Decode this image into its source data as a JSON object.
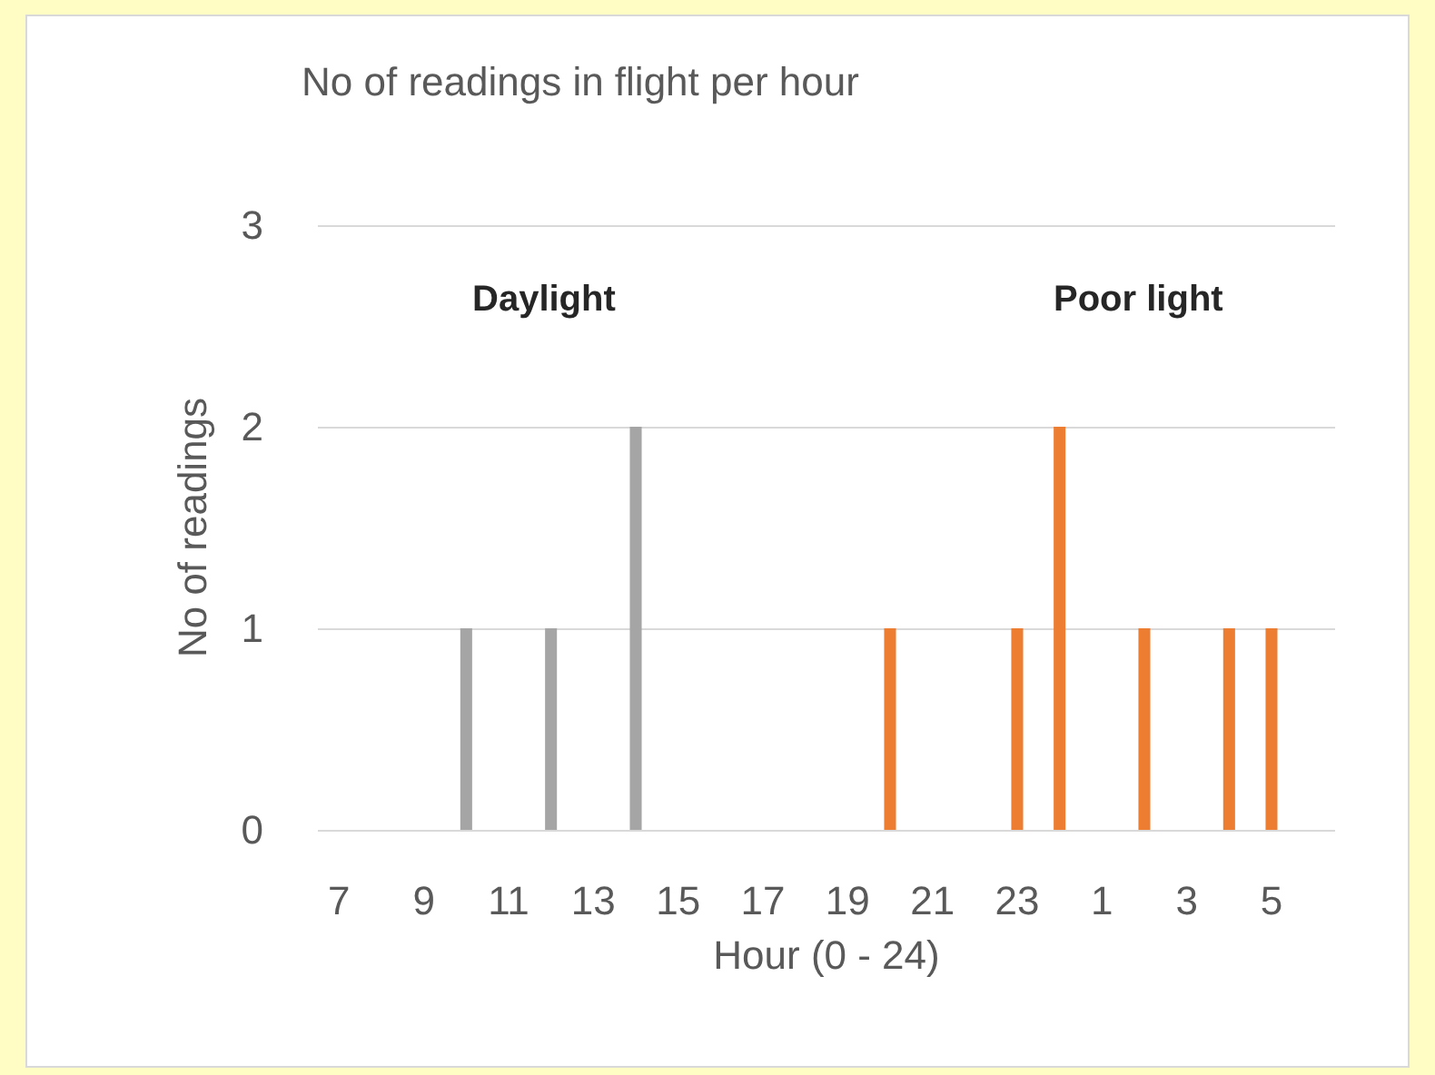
{
  "chart_data": {
    "type": "bar",
    "title": "No of readings in flight per hour",
    "xlabel": "Hour (0 - 24)",
    "ylabel": "No of readings",
    "categories": [
      "7",
      null,
      "9",
      null,
      "11",
      null,
      "13",
      null,
      "15",
      null,
      "17",
      null,
      "19",
      null,
      "21",
      null,
      "23",
      null,
      "1",
      null,
      "3",
      null,
      "5",
      null
    ],
    "series": [
      {
        "color": "#a5a5a5",
        "values": [
          null,
          null,
          null,
          1,
          null,
          1,
          null,
          2,
          null,
          null,
          null,
          null,
          null,
          null,
          null,
          null,
          null,
          null,
          null,
          null,
          null,
          null,
          null,
          null
        ]
      },
      {
        "color": "#ed7d31",
        "values": [
          null,
          null,
          null,
          null,
          null,
          null,
          null,
          null,
          null,
          null,
          null,
          null,
          null,
          1,
          null,
          null,
          1,
          2,
          null,
          1,
          null,
          1,
          1,
          null
        ]
      }
    ],
    "stacked": true,
    "ylim": [
      0,
      3
    ],
    "yticks": [
      0,
      1,
      2,
      3
    ],
    "grid": "y",
    "annotations": [
      "Daylight",
      "Poor light"
    ]
  }
}
